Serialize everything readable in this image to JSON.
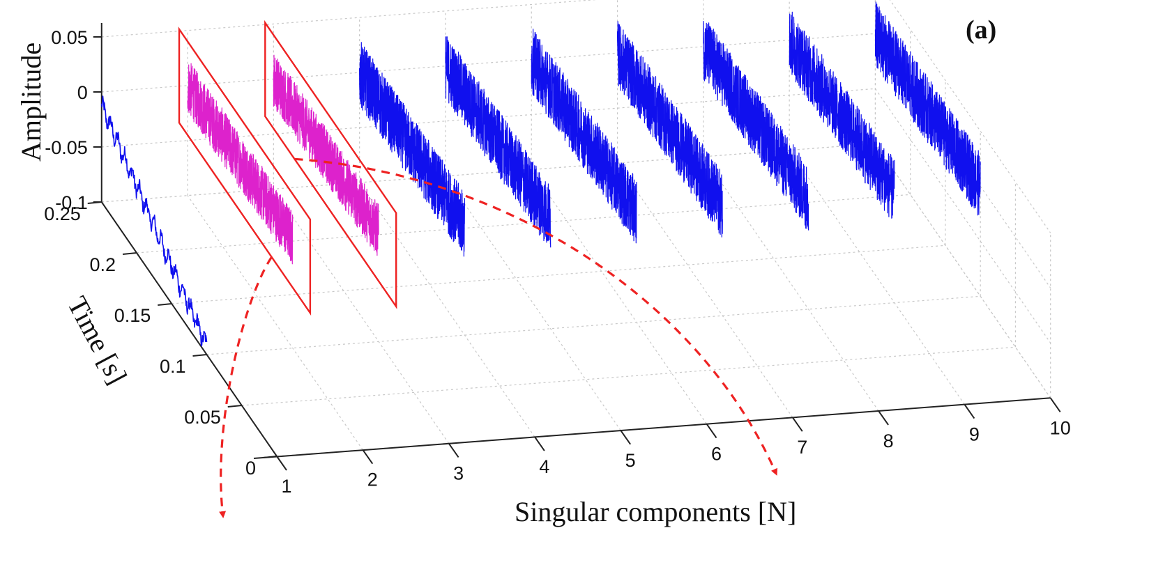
{
  "chart_data": {
    "type": "line",
    "title": "",
    "panel_label": "(a)",
    "xlabel": "Singular components [N]",
    "ylabel": "Time [s]",
    "zlabel": "Amplitude",
    "x_ticks": [
      "1",
      "2",
      "3",
      "4",
      "5",
      "6",
      "7",
      "8",
      "9",
      "10"
    ],
    "y_ticks": [
      "0",
      "0.05",
      "0.1",
      "0.15",
      "0.2",
      "0.25"
    ],
    "z_ticks": [
      "0.05",
      "0",
      "-0.05",
      "-0.1"
    ],
    "xlim": [
      1,
      10
    ],
    "ylim": [
      0,
      0.25
    ],
    "zlim": [
      -0.1,
      0.05
    ],
    "grid": true,
    "series": [
      {
        "component": 1,
        "color": "#1010ee",
        "time_range": [
          0.1,
          0.25
        ],
        "amplitude_center": -0.04,
        "amplitude_spread": 0.05,
        "trend": "decreasing",
        "highlighted": false
      },
      {
        "component": 2,
        "color": "#dd22cc",
        "time_range": [
          0.1,
          0.25
        ],
        "amplitude_center": 0.0,
        "amplitude_spread": 0.025,
        "trend": "flat",
        "highlighted": true
      },
      {
        "component": 3,
        "color": "#dd22cc",
        "time_range": [
          0.1,
          0.25
        ],
        "amplitude_center": 0.0,
        "amplitude_spread": 0.025,
        "trend": "flat",
        "highlighted": true
      },
      {
        "component": 4,
        "color": "#1010ee",
        "time_range": [
          0.1,
          0.25
        ],
        "amplitude_center": 0.0,
        "amplitude_spread": 0.03,
        "trend": "flat",
        "highlighted": false
      },
      {
        "component": 5,
        "color": "#1010ee",
        "time_range": [
          0.1,
          0.25
        ],
        "amplitude_center": 0.0,
        "amplitude_spread": 0.03,
        "trend": "flat",
        "highlighted": false
      },
      {
        "component": 6,
        "color": "#1010ee",
        "time_range": [
          0.1,
          0.25
        ],
        "amplitude_center": 0.0,
        "amplitude_spread": 0.03,
        "trend": "flat",
        "highlighted": false
      },
      {
        "component": 7,
        "color": "#1010ee",
        "time_range": [
          0.1,
          0.25
        ],
        "amplitude_center": 0.0,
        "amplitude_spread": 0.03,
        "trend": "flat",
        "highlighted": false
      },
      {
        "component": 8,
        "color": "#1010ee",
        "time_range": [
          0.1,
          0.25
        ],
        "amplitude_center": 0.0,
        "amplitude_spread": 0.03,
        "trend": "flat",
        "highlighted": false
      },
      {
        "component": 9,
        "color": "#1010ee",
        "time_range": [
          0.1,
          0.25
        ],
        "amplitude_center": 0.0,
        "amplitude_spread": 0.03,
        "trend": "flat",
        "highlighted": false
      },
      {
        "component": 10,
        "color": "#1010ee",
        "time_range": [
          0.1,
          0.25
        ],
        "amplitude_center": 0.0,
        "amplitude_spread": 0.03,
        "trend": "flat",
        "highlighted": false
      }
    ],
    "highlight_color": "#ee2222",
    "annotations": [
      {
        "type": "dashed-arrow",
        "from_component": 2,
        "color": "#ee2222"
      },
      {
        "type": "dashed-arrow",
        "from_component": 3,
        "color": "#ee2222"
      }
    ]
  }
}
